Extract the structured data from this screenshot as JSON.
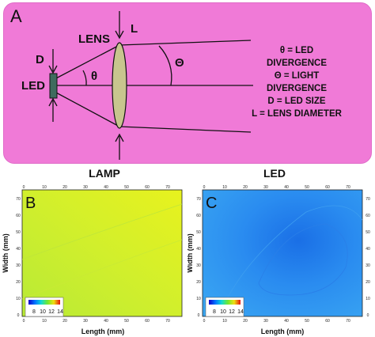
{
  "panel_a": {
    "letter": "A",
    "lens_label": "LENS",
    "l_label": "L",
    "d_label": "D",
    "led_label": "LED",
    "theta_symbol": "θ",
    "big_theta_symbol": "Θ",
    "legend_lines": [
      "θ = LED",
      "DIVERGENCE",
      "Θ = LIGHT",
      "DIVERGENCE",
      "D = LED SIZE",
      "L = LENS DIAMETER"
    ],
    "colors": {
      "background": "#f07ad7",
      "lens_fill": "#c8c58e",
      "led_fill": "#3f6b5e"
    }
  },
  "panel_b": {
    "title": "LAMP",
    "letter": "B",
    "xlabel": "Length (mm)",
    "ylabel": "Width (mm)",
    "x_ticks": [
      "0",
      "10",
      "20",
      "30",
      "40",
      "50",
      "60",
      "70"
    ],
    "y_ticks": [
      "0",
      "10",
      "20",
      "30",
      "40",
      "50",
      "60",
      "70"
    ],
    "colorbar_ticks": [
      "8",
      "10",
      "12",
      "14"
    ]
  },
  "panel_c": {
    "title": "LED",
    "letter": "C",
    "xlabel": "Length (mm)",
    "ylabel": "Width (mm)",
    "x_ticks": [
      "0",
      "10",
      "20",
      "30",
      "40",
      "50",
      "60",
      "70"
    ],
    "y_ticks": [
      "0",
      "10",
      "20",
      "30",
      "40",
      "50",
      "60",
      "70"
    ],
    "colorbar_ticks": [
      "8",
      "10",
      "12",
      "14"
    ]
  }
}
